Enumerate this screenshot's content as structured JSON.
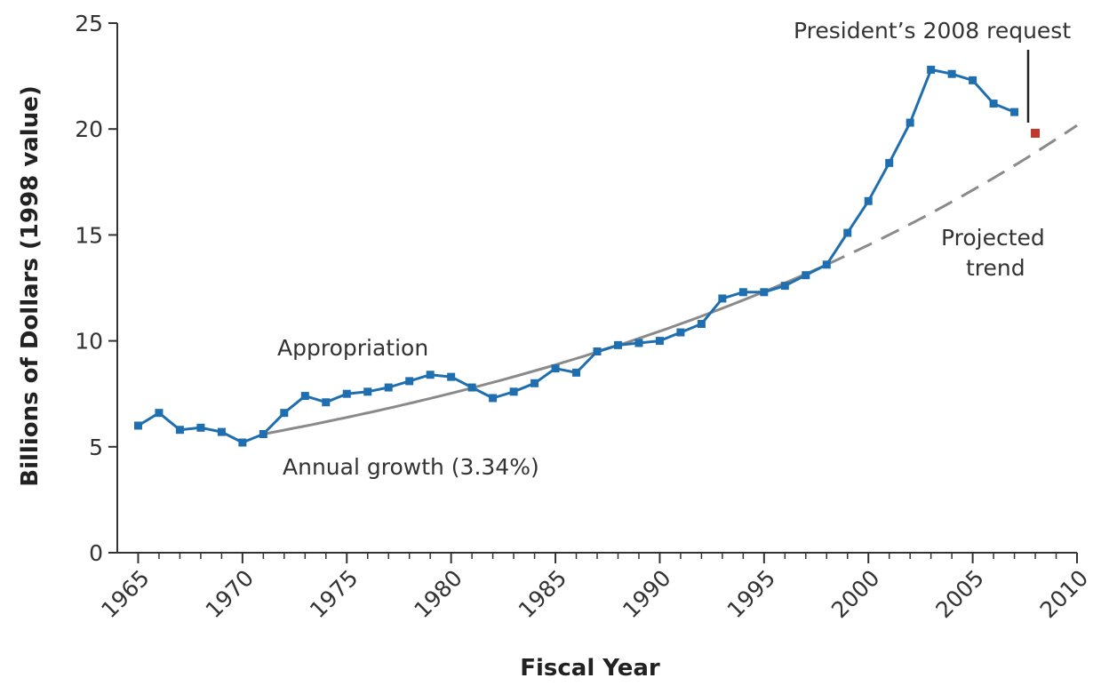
{
  "chart_data": {
    "type": "line",
    "title": "",
    "xlabel": "Fiscal Year",
    "ylabel": "Billions of Dollars (1998 value)",
    "xlim": [
      1964,
      2010
    ],
    "ylim": [
      0,
      25
    ],
    "xticks": [
      1965,
      1970,
      1975,
      1980,
      1985,
      1990,
      1995,
      2000,
      2005,
      2010
    ],
    "xtick_labels": [
      "1965",
      "1970",
      "1975",
      "1980",
      "1985",
      "1990",
      "1995",
      "2000",
      "2005",
      "2010"
    ],
    "yticks": [
      0,
      5,
      10,
      15,
      20,
      25
    ],
    "ytick_labels": [
      "0",
      "5",
      "10",
      "15",
      "20",
      "25"
    ],
    "grid": false,
    "series": [
      {
        "name": "Appropriation",
        "color": "#1f6fb0",
        "x": [
          1965,
          1966,
          1967,
          1968,
          1969,
          1970,
          1971,
          1972,
          1973,
          1974,
          1975,
          1976,
          1977,
          1978,
          1979,
          1980,
          1981,
          1982,
          1983,
          1984,
          1985,
          1986,
          1987,
          1988,
          1989,
          1990,
          1991,
          1992,
          1993,
          1994,
          1995,
          1996,
          1997,
          1998,
          1999,
          2000,
          2001,
          2002,
          2003,
          2004,
          2005,
          2006,
          2007
        ],
        "y": [
          6.0,
          6.6,
          5.8,
          5.9,
          5.7,
          5.2,
          5.6,
          6.6,
          7.4,
          7.1,
          7.5,
          7.6,
          7.8,
          8.1,
          8.4,
          8.3,
          7.8,
          7.3,
          7.6,
          8.0,
          8.7,
          8.5,
          9.5,
          9.8,
          9.9,
          10.0,
          10.4,
          10.8,
          12.0,
          12.3,
          12.3,
          12.6,
          13.1,
          13.6,
          15.1,
          16.6,
          18.4,
          20.3,
          22.8,
          22.6,
          22.3,
          21.2,
          20.8
        ]
      },
      {
        "name": "Annual growth (3.34%)",
        "color": "#8a8a8a",
        "x": [
          1971,
          1998
        ],
        "y": [
          5.6,
          13.6
        ],
        "growth_rate": 0.0334
      },
      {
        "name": "Projected trend",
        "color": "#8a8a8a",
        "x": [
          1998,
          2010
        ],
        "y": [
          13.6,
          20.3
        ],
        "growth_rate": 0.0334
      },
      {
        "name": "President's 2008 request",
        "color": "#c0392b",
        "x": [
          2008
        ],
        "y": [
          19.8
        ]
      }
    ],
    "annotations": {
      "appropriation": "Appropriation",
      "growth": "Annual growth (3.34%)",
      "projected_line1": "Projected",
      "projected_line2": "trend",
      "request": "President’s 2008 request"
    }
  }
}
